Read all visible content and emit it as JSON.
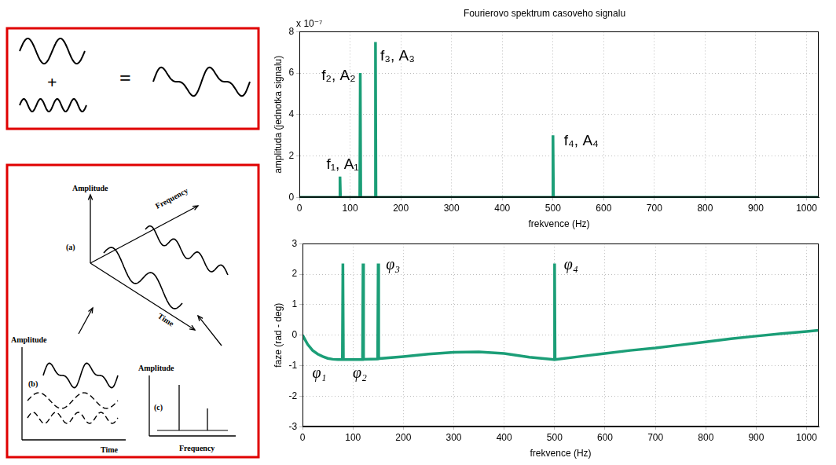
{
  "chart_data": [
    {
      "type": "line",
      "title": "Fourierovo spektrum casoveho signalu",
      "x_label": "frekvence (Hz)",
      "y_label": "amplituda (jednotka signalu)",
      "axis_multiplier": "x 10⁻⁷",
      "x": [
        0,
        79,
        80,
        81,
        119,
        120,
        121,
        149,
        150,
        151,
        499,
        500,
        501,
        1024
      ],
      "values": [
        0,
        0,
        1e-07,
        0,
        0,
        6e-07,
        0,
        0,
        7.5e-07,
        0,
        0,
        3e-07,
        0,
        0
      ],
      "color": "#1b9e77",
      "xlim": [
        0,
        1024
      ],
      "xticks": [
        0,
        100,
        200,
        300,
        400,
        500,
        600,
        700,
        800,
        900,
        1000
      ],
      "ylim": [
        0,
        8e-07
      ],
      "yticks": [
        {
          "value": 0,
          "label": "0"
        },
        {
          "value": 2e-07,
          "label": "2"
        },
        {
          "value": 4e-07,
          "label": "4"
        },
        {
          "value": 6e-07,
          "label": "6"
        },
        {
          "value": 8e-07,
          "label": "8"
        }
      ],
      "grid": true,
      "peak_labels": [
        {
          "text": "f₁, A₁",
          "x": 80
        },
        {
          "text": "f₂, A₂",
          "x": 120
        },
        {
          "text": "f₃, A₃",
          "x": 150
        },
        {
          "text": "f₄, A₄",
          "x": 500
        }
      ]
    },
    {
      "type": "line",
      "x_label": "frekvence (Hz)",
      "y_label": "faze (rad - deg)",
      "x": [
        0,
        10,
        20,
        30,
        40,
        50,
        60,
        70,
        79,
        80,
        81,
        100,
        119,
        120,
        121,
        149,
        150,
        151,
        200,
        250,
        300,
        350,
        400,
        450,
        499,
        500,
        501,
        550,
        600,
        650,
        700,
        750,
        800,
        850,
        900,
        950,
        1000,
        1024
      ],
      "values": [
        0,
        -0.3,
        -0.5,
        -0.62,
        -0.7,
        -0.76,
        -0.79,
        -0.8,
        -0.8,
        2.35,
        -0.8,
        -0.8,
        -0.8,
        2.35,
        -0.79,
        -0.78,
        2.35,
        -0.77,
        -0.7,
        -0.62,
        -0.56,
        -0.55,
        -0.6,
        -0.72,
        -0.8,
        2.35,
        -0.8,
        -0.7,
        -0.6,
        -0.5,
        -0.42,
        -0.32,
        -0.22,
        -0.12,
        -0.03,
        0.05,
        0.12,
        0.16
      ],
      "color": "#1b9e77",
      "xlim": [
        0,
        1024
      ],
      "xticks": [
        0,
        100,
        200,
        300,
        400,
        500,
        600,
        700,
        800,
        900,
        1000
      ],
      "ylim": [
        -3,
        3
      ],
      "yticks": [
        -3,
        -2,
        -1,
        0,
        1,
        2,
        3
      ],
      "grid": true,
      "peak_labels": [
        {
          "text": "φ₁",
          "x": 80
        },
        {
          "text": "φ₂",
          "x": 120
        },
        {
          "text": "φ₃",
          "x": 150
        },
        {
          "text": "φ₄",
          "x": 500
        }
      ]
    }
  ],
  "left_panels": {
    "sum": {
      "plus": "+",
      "equals": "="
    },
    "domains": {
      "main": {
        "label": "(a)",
        "amplitude": "Amplitude",
        "frequency": "Frequency",
        "time": "Time"
      },
      "time_view": {
        "label": "(b)",
        "amplitude": "Amplitude",
        "time": "Time"
      },
      "frequency_view": {
        "label": "(c)",
        "amplitude": "Amplitude",
        "frequency": "Frequency"
      }
    }
  }
}
